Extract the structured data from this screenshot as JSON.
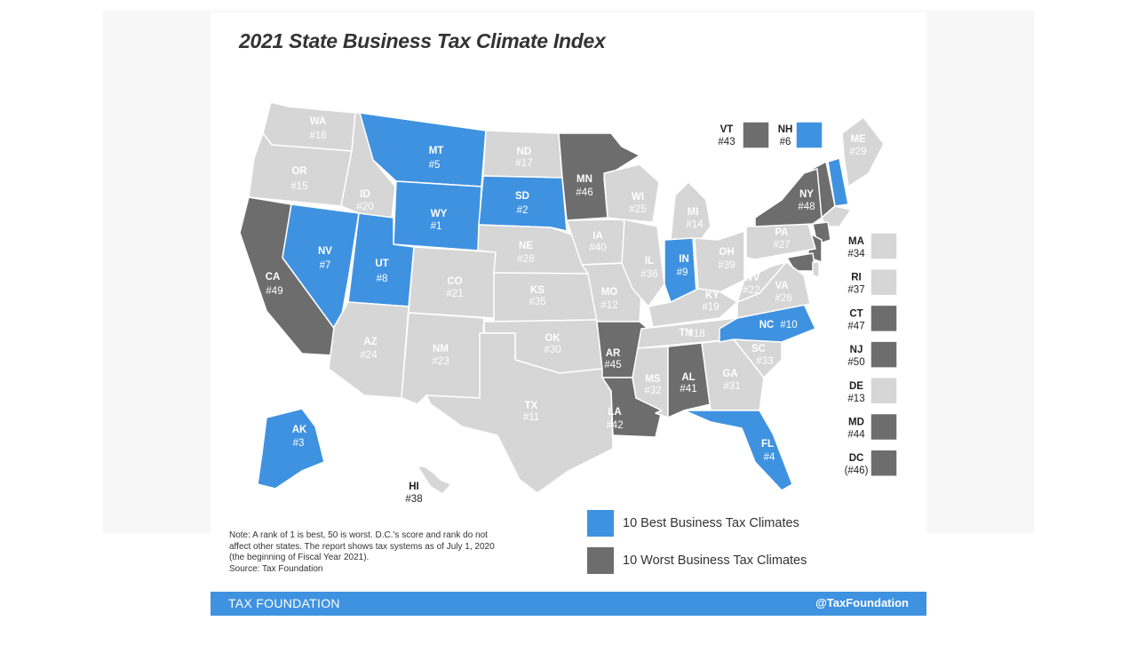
{
  "title": "2021 State Business Tax Climate Index",
  "colors": {
    "best": "#3f92e0",
    "worst": "#6d6d6d",
    "neutral": "#d6d6d6"
  },
  "states": [
    {
      "id": "WA",
      "rank": "#16",
      "cat": "neutral"
    },
    {
      "id": "OR",
      "rank": "#15",
      "cat": "neutral"
    },
    {
      "id": "CA",
      "rank": "#49",
      "cat": "worst"
    },
    {
      "id": "NV",
      "rank": "#7",
      "cat": "best"
    },
    {
      "id": "ID",
      "rank": "#20",
      "cat": "neutral"
    },
    {
      "id": "MT",
      "rank": "#5",
      "cat": "best"
    },
    {
      "id": "WY",
      "rank": "#1",
      "cat": "best"
    },
    {
      "id": "UT",
      "rank": "#8",
      "cat": "best"
    },
    {
      "id": "AZ",
      "rank": "#24",
      "cat": "neutral"
    },
    {
      "id": "CO",
      "rank": "#21",
      "cat": "neutral"
    },
    {
      "id": "NM",
      "rank": "#23",
      "cat": "neutral"
    },
    {
      "id": "ND",
      "rank": "#17",
      "cat": "neutral"
    },
    {
      "id": "SD",
      "rank": "#2",
      "cat": "best"
    },
    {
      "id": "NE",
      "rank": "#28",
      "cat": "neutral"
    },
    {
      "id": "KS",
      "rank": "#35",
      "cat": "neutral"
    },
    {
      "id": "OK",
      "rank": "#30",
      "cat": "neutral"
    },
    {
      "id": "TX",
      "rank": "#11",
      "cat": "neutral"
    },
    {
      "id": "MN",
      "rank": "#46",
      "cat": "worst"
    },
    {
      "id": "IA",
      "rank": "#40",
      "cat": "neutral"
    },
    {
      "id": "MO",
      "rank": "#12",
      "cat": "neutral"
    },
    {
      "id": "AR",
      "rank": "#45",
      "cat": "worst"
    },
    {
      "id": "LA",
      "rank": "#42",
      "cat": "worst"
    },
    {
      "id": "WI",
      "rank": "#25",
      "cat": "neutral"
    },
    {
      "id": "IL",
      "rank": "#36",
      "cat": "neutral"
    },
    {
      "id": "MI",
      "rank": "#14",
      "cat": "neutral"
    },
    {
      "id": "IN",
      "rank": "#9",
      "cat": "best"
    },
    {
      "id": "OH",
      "rank": "#39",
      "cat": "neutral"
    },
    {
      "id": "KY",
      "rank": "#19",
      "cat": "neutral"
    },
    {
      "id": "TN",
      "rank": "#18",
      "cat": "neutral"
    },
    {
      "id": "MS",
      "rank": "#32",
      "cat": "neutral"
    },
    {
      "id": "AL",
      "rank": "#41",
      "cat": "worst"
    },
    {
      "id": "GA",
      "rank": "#31",
      "cat": "neutral"
    },
    {
      "id": "FL",
      "rank": "#4",
      "cat": "best"
    },
    {
      "id": "SC",
      "rank": "#33",
      "cat": "neutral"
    },
    {
      "id": "NC",
      "rank": "#10",
      "cat": "best"
    },
    {
      "id": "VA",
      "rank": "#26",
      "cat": "neutral"
    },
    {
      "id": "WV",
      "rank": "#22",
      "cat": "neutral"
    },
    {
      "id": "PA",
      "rank": "#27",
      "cat": "neutral"
    },
    {
      "id": "NY",
      "rank": "#48",
      "cat": "worst"
    },
    {
      "id": "ME",
      "rank": "#29",
      "cat": "neutral"
    },
    {
      "id": "AK",
      "rank": "#3",
      "cat": "best"
    },
    {
      "id": "HI",
      "rank": "#38",
      "cat": "neutral"
    }
  ],
  "inset_top": [
    {
      "id": "VT",
      "rank": "#43",
      "cat": "worst"
    },
    {
      "id": "NH",
      "rank": "#6",
      "cat": "best"
    }
  ],
  "inset_side": [
    {
      "id": "MA",
      "rank": "#34",
      "cat": "neutral"
    },
    {
      "id": "RI",
      "rank": "#37",
      "cat": "neutral"
    },
    {
      "id": "CT",
      "rank": "#47",
      "cat": "worst"
    },
    {
      "id": "NJ",
      "rank": "#50",
      "cat": "worst"
    },
    {
      "id": "DE",
      "rank": "#13",
      "cat": "neutral"
    },
    {
      "id": "MD",
      "rank": "#44",
      "cat": "worst"
    },
    {
      "id": "DC",
      "rank": "(#46)",
      "cat": "worst"
    }
  ],
  "note": "Note: A rank of 1 is best, 50 is worst. D.C.'s score and rank do not affect other states. The report shows tax systems as of July 1, 2020 (the beginning of Fiscal Year 2021).",
  "source": "Source: Tax Foundation",
  "legend": {
    "best_label": "10 Best Business Tax Climates",
    "worst_label": "10 Worst Business Tax Climates"
  },
  "footer": {
    "left": "TAX FOUNDATION",
    "right": "@TaxFoundation"
  }
}
